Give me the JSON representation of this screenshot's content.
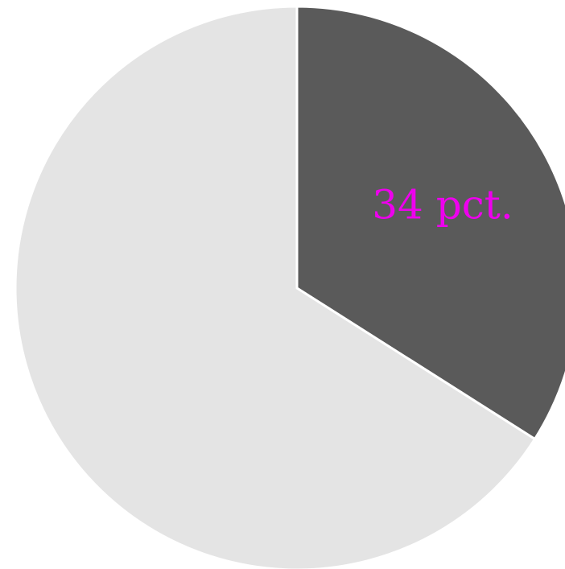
{
  "chart_data": {
    "type": "pie",
    "slices": [
      {
        "value": 34,
        "label": "34 pct.",
        "color": "#5a5a5a",
        "label_color": "#ee00ee"
      },
      {
        "value": 66,
        "label": "",
        "color": "#e4e4e4",
        "label_color": "#ee00ee"
      }
    ],
    "start_angle_deg": 0,
    "direction": "clockwise",
    "slice_border_color": "#ffffff",
    "legend": "none"
  }
}
